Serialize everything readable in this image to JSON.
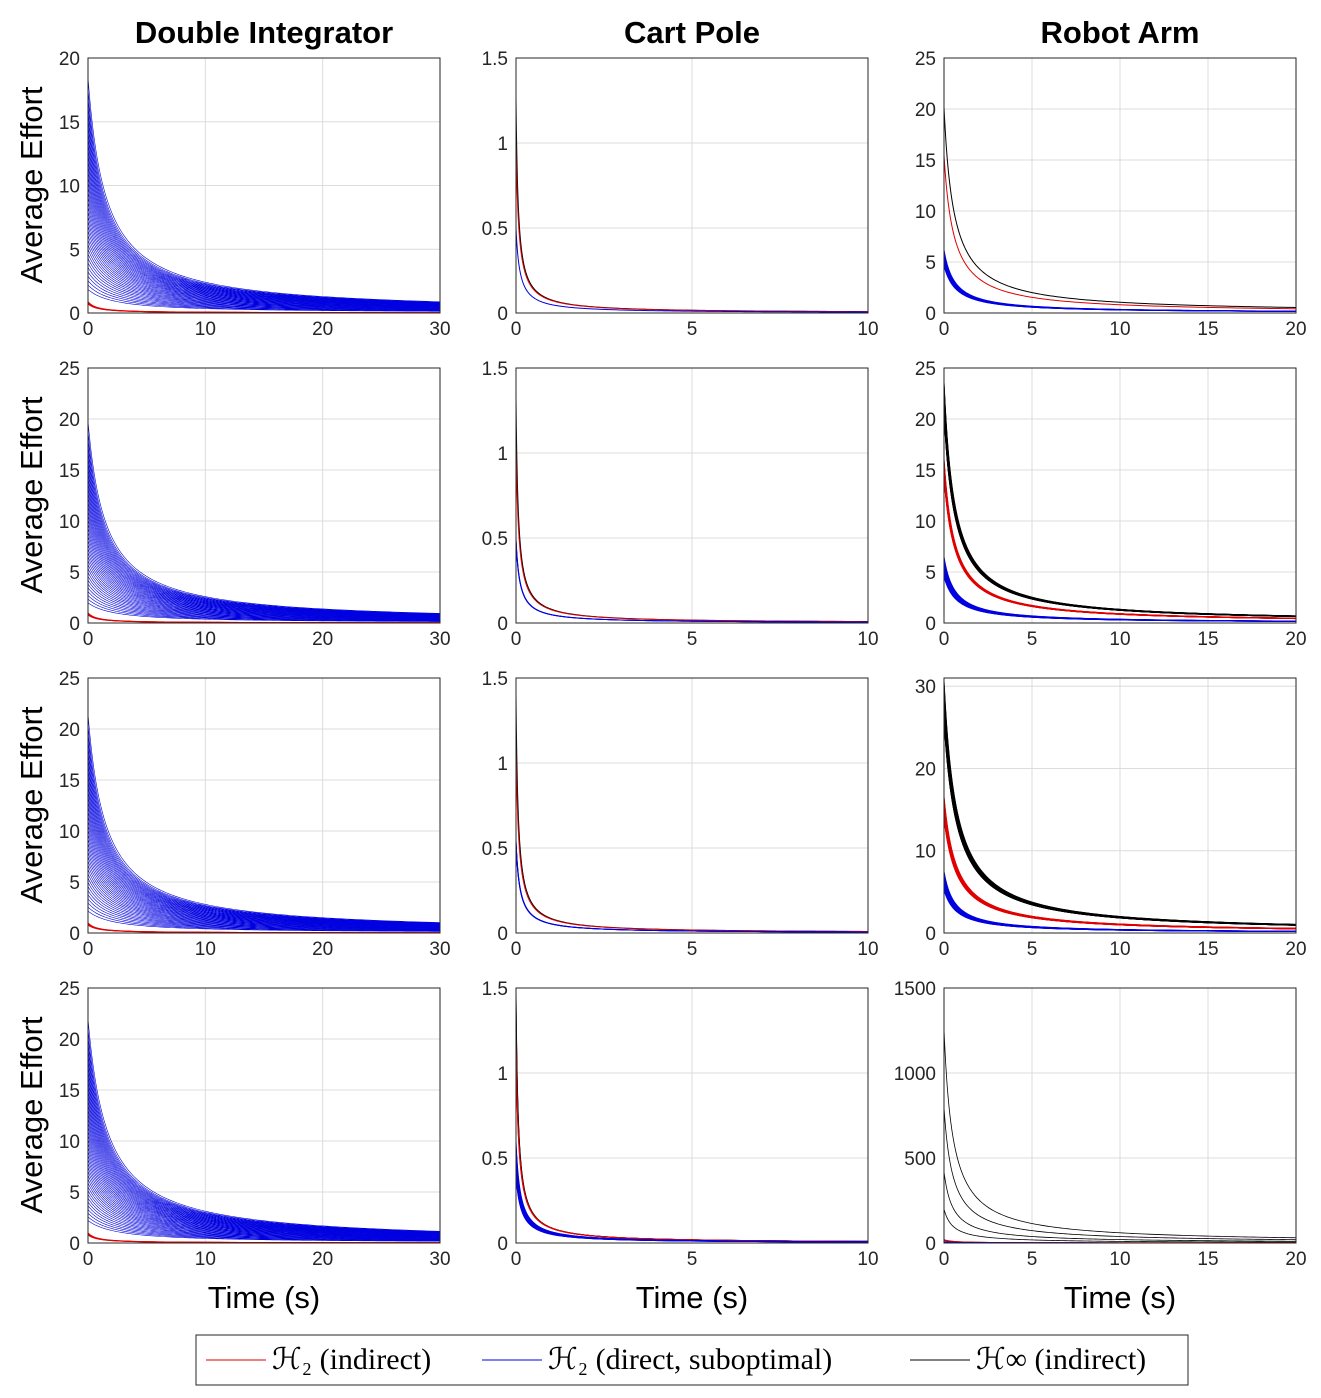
{
  "column_titles": [
    "Double Integrator",
    "Cart Pole",
    "Robot Arm"
  ],
  "ylabel": "Average Effort",
  "xlabel": "Time (s)",
  "legend": [
    {
      "label": "ℋ₂ (indirect)",
      "color": "#e00000"
    },
    {
      "label": "ℋ₂ (direct, suboptimal)",
      "color": "#0000e0"
    },
    {
      "label": "ℋ∞ (indirect)",
      "color": "#000000"
    }
  ],
  "colors": {
    "h2_indirect": "#e00000",
    "h2_direct": "#0000e0",
    "hinf_indirect": "#000000"
  },
  "chart_data": [
    {
      "type": "line",
      "row": 1,
      "col": 1,
      "xlim": [
        0,
        30
      ],
      "ylim": [
        0,
        20
      ],
      "xticks": [
        0,
        10,
        20,
        30
      ],
      "yticks": [
        0,
        5,
        10,
        15,
        20
      ],
      "xtick_labels": [
        "0",
        "10",
        "20",
        "30"
      ],
      "ytick_labels": [
        "0",
        "5",
        "10",
        "15",
        "20"
      ],
      "grid": true,
      "series": [
        {
          "name": "H2 direct",
          "color": "#0000e0",
          "peak": [
            18.5
          ],
          "spread": 0.9,
          "tau": 1.0,
          "count": 40,
          "width": 0.6
        },
        {
          "name": "H2 indirect",
          "color": "#e00000",
          "peak": [
            0.9
          ],
          "spread": 0.2,
          "tau": 0.5,
          "count": 4,
          "width": 1.0
        }
      ]
    },
    {
      "type": "line",
      "row": 1,
      "col": 2,
      "xlim": [
        0,
        10
      ],
      "ylim": [
        0,
        1.5
      ],
      "xticks": [
        0,
        5,
        10
      ],
      "yticks": [
        0,
        0.5,
        1,
        1.5
      ],
      "xtick_labels": [
        "0",
        "5",
        "10"
      ],
      "ytick_labels": [
        "0",
        "0.5",
        "1",
        "1.5"
      ],
      "grid": true,
      "series": [
        {
          "name": "H-inf indirect",
          "color": "#000000",
          "peak": [
            1.27
          ],
          "spread": 0,
          "tau": 0.13,
          "count": 1,
          "width": 1.0
        },
        {
          "name": "H2 indirect",
          "color": "#e00000",
          "peak": [
            1.0
          ],
          "spread": 0,
          "tau": 0.16,
          "count": 1,
          "width": 1.0
        },
        {
          "name": "H2 direct",
          "color": "#0000e0",
          "peak": [
            0.5
          ],
          "spread": 0,
          "tau": 0.22,
          "count": 1,
          "width": 1.0
        }
      ]
    },
    {
      "type": "line",
      "row": 1,
      "col": 3,
      "xlim": [
        0,
        20
      ],
      "ylim": [
        0,
        25
      ],
      "xticks": [
        0,
        5,
        10,
        15,
        20
      ],
      "yticks": [
        0,
        5,
        10,
        15,
        20,
        25
      ],
      "xtick_labels": [
        "0",
        "5",
        "10",
        "15",
        "20"
      ],
      "ytick_labels": [
        "0",
        "5",
        "10",
        "15",
        "20",
        "25"
      ],
      "grid": true,
      "series": [
        {
          "name": "H-inf indirect",
          "color": "#000000",
          "peak": [
            20.2
          ],
          "spread": 0,
          "tau": 0.55,
          "count": 1,
          "width": 1.0
        },
        {
          "name": "H2 indirect",
          "color": "#e00000",
          "peak": [
            15.5
          ],
          "spread": 0,
          "tau": 0.55,
          "count": 1,
          "width": 1.0
        },
        {
          "name": "H2 direct",
          "color": "#0000e0",
          "peak": [
            6.2
          ],
          "spread": 0.25,
          "tau": 0.6,
          "count": 12,
          "width": 1.0
        }
      ]
    },
    {
      "type": "line",
      "row": 2,
      "col": 1,
      "xlim": [
        0,
        30
      ],
      "ylim": [
        0,
        25
      ],
      "xticks": [
        0,
        10,
        20,
        30
      ],
      "yticks": [
        0,
        5,
        10,
        15,
        20,
        25
      ],
      "xtick_labels": [
        "0",
        "10",
        "20",
        "30"
      ],
      "ytick_labels": [
        "0",
        "5",
        "10",
        "15",
        "20",
        "25"
      ],
      "grid": true,
      "series": [
        {
          "name": "H2 direct",
          "color": "#0000e0",
          "peak": [
            19.8
          ],
          "spread": 0.9,
          "tau": 1.0,
          "count": 40,
          "width": 0.6
        },
        {
          "name": "H2 indirect",
          "color": "#e00000",
          "peak": [
            1.0
          ],
          "spread": 0.2,
          "tau": 0.5,
          "count": 4,
          "width": 1.0
        }
      ]
    },
    {
      "type": "line",
      "row": 2,
      "col": 2,
      "xlim": [
        0,
        10
      ],
      "ylim": [
        0,
        1.5
      ],
      "xticks": [
        0,
        5,
        10
      ],
      "yticks": [
        0,
        0.5,
        1,
        1.5
      ],
      "xtick_labels": [
        "0",
        "5",
        "10"
      ],
      "ytick_labels": [
        "0",
        "0.5",
        "1",
        "1.5"
      ],
      "grid": true,
      "series": [
        {
          "name": "H-inf indirect",
          "color": "#000000",
          "peak": [
            1.33
          ],
          "spread": 0,
          "tau": 0.13,
          "count": 1,
          "width": 1.0
        },
        {
          "name": "H2 indirect",
          "color": "#e00000",
          "peak": [
            1.05
          ],
          "spread": 0,
          "tau": 0.16,
          "count": 1,
          "width": 1.0
        },
        {
          "name": "H2 direct",
          "color": "#0000e0",
          "peak": [
            0.5
          ],
          "spread": 0.04,
          "tau": 0.22,
          "count": 3,
          "width": 1.0
        }
      ]
    },
    {
      "type": "line",
      "row": 2,
      "col": 3,
      "xlim": [
        0,
        20
      ],
      "ylim": [
        0,
        25
      ],
      "xticks": [
        0,
        5,
        10,
        15,
        20
      ],
      "yticks": [
        0,
        5,
        10,
        15,
        20,
        25
      ],
      "xtick_labels": [
        "0",
        "5",
        "10",
        "15",
        "20"
      ],
      "ytick_labels": [
        "0",
        "5",
        "10",
        "15",
        "20",
        "25"
      ],
      "grid": true,
      "series": [
        {
          "name": "H-inf indirect",
          "color": "#000000",
          "peak": [
            23.5
          ],
          "spread": 0.12,
          "tau": 0.6,
          "count": 25,
          "width": 1.2
        },
        {
          "name": "H2 indirect",
          "color": "#e00000",
          "peak": [
            16.0
          ],
          "spread": 0.1,
          "tau": 0.6,
          "count": 20,
          "width": 1.2
        },
        {
          "name": "H2 direct",
          "color": "#0000e0",
          "peak": [
            6.5
          ],
          "spread": 0.3,
          "tau": 0.6,
          "count": 20,
          "width": 1.0
        }
      ]
    },
    {
      "type": "line",
      "row": 3,
      "col": 1,
      "xlim": [
        0,
        30
      ],
      "ylim": [
        0,
        25
      ],
      "xticks": [
        0,
        10,
        20,
        30
      ],
      "yticks": [
        0,
        5,
        10,
        15,
        20,
        25
      ],
      "xtick_labels": [
        "0",
        "10",
        "20",
        "30"
      ],
      "ytick_labels": [
        "0",
        "5",
        "10",
        "15",
        "20",
        "25"
      ],
      "grid": true,
      "series": [
        {
          "name": "H2 direct",
          "color": "#0000e0",
          "peak": [
            21.5
          ],
          "spread": 0.9,
          "tau": 1.0,
          "count": 40,
          "width": 0.6
        },
        {
          "name": "H2 indirect",
          "color": "#e00000",
          "peak": [
            1.0
          ],
          "spread": 0.2,
          "tau": 0.5,
          "count": 4,
          "width": 1.0
        }
      ]
    },
    {
      "type": "line",
      "row": 3,
      "col": 2,
      "xlim": [
        0,
        10
      ],
      "ylim": [
        0,
        1.5
      ],
      "xticks": [
        0,
        5,
        10
      ],
      "yticks": [
        0,
        0.5,
        1,
        1.5
      ],
      "xtick_labels": [
        "0",
        "5",
        "10"
      ],
      "ytick_labels": [
        "0",
        "0.5",
        "1",
        "1.5"
      ],
      "grid": true,
      "series": [
        {
          "name": "H-inf indirect",
          "color": "#000000",
          "peak": [
            1.4
          ],
          "spread": 0,
          "tau": 0.13,
          "count": 1,
          "width": 1.0
        },
        {
          "name": "H2 indirect",
          "color": "#e00000",
          "peak": [
            1.1
          ],
          "spread": 0,
          "tau": 0.16,
          "count": 1,
          "width": 1.0
        },
        {
          "name": "H2 direct",
          "color": "#0000e0",
          "peak": [
            0.55
          ],
          "spread": 0.05,
          "tau": 0.22,
          "count": 4,
          "width": 1.0
        }
      ]
    },
    {
      "type": "line",
      "row": 3,
      "col": 3,
      "xlim": [
        0,
        20
      ],
      "ylim": [
        0,
        31
      ],
      "xticks": [
        0,
        5,
        10,
        15,
        20
      ],
      "yticks": [
        0,
        10,
        20,
        30
      ],
      "xtick_labels": [
        "0",
        "5",
        "10",
        "15",
        "20"
      ],
      "ytick_labels": [
        "0",
        "10",
        "20",
        "30"
      ],
      "grid": true,
      "series": [
        {
          "name": "H-inf indirect",
          "color": "#000000",
          "peak": [
            30.5
          ],
          "spread": 0.15,
          "tau": 0.7,
          "count": 30,
          "width": 1.2
        },
        {
          "name": "H2 indirect",
          "color": "#e00000",
          "peak": [
            16.5
          ],
          "spread": 0.15,
          "tau": 0.7,
          "count": 25,
          "width": 1.2
        },
        {
          "name": "H2 direct",
          "color": "#0000e0",
          "peak": [
            7.5
          ],
          "spread": 0.3,
          "tau": 0.6,
          "count": 25,
          "width": 1.0
        }
      ]
    },
    {
      "type": "line",
      "row": 4,
      "col": 1,
      "xlim": [
        0,
        30
      ],
      "ylim": [
        0,
        25
      ],
      "xticks": [
        0,
        10,
        20,
        30
      ],
      "yticks": [
        0,
        5,
        10,
        15,
        20,
        25
      ],
      "xtick_labels": [
        "0",
        "10",
        "20",
        "30"
      ],
      "ytick_labels": [
        "0",
        "5",
        "10",
        "15",
        "20",
        "25"
      ],
      "grid": true,
      "series": [
        {
          "name": "H2 direct",
          "color": "#0000e0",
          "peak": [
            22.0
          ],
          "spread": 0.9,
          "tau": 1.1,
          "count": 45,
          "width": 0.6
        },
        {
          "name": "H2 indirect",
          "color": "#e00000",
          "peak": [
            1.0
          ],
          "spread": 0.2,
          "tau": 0.5,
          "count": 4,
          "width": 1.0
        }
      ]
    },
    {
      "type": "line",
      "row": 4,
      "col": 2,
      "xlim": [
        0,
        10
      ],
      "ylim": [
        0,
        1.5
      ],
      "xticks": [
        0,
        5,
        10
      ],
      "yticks": [
        0,
        0.5,
        1,
        1.5
      ],
      "xtick_labels": [
        "0",
        "5",
        "10"
      ],
      "ytick_labels": [
        "0",
        "0.5",
        "1",
        "1.5"
      ],
      "grid": true,
      "series": [
        {
          "name": "H-inf indirect",
          "color": "#000000",
          "peak": [
            1.48
          ],
          "spread": 0.05,
          "tau": 0.13,
          "count": 3,
          "width": 1.0
        },
        {
          "name": "H2 indirect",
          "color": "#e00000",
          "peak": [
            1.2
          ],
          "spread": 0.05,
          "tau": 0.16,
          "count": 3,
          "width": 1.0
        },
        {
          "name": "H2 direct",
          "color": "#0000e0",
          "peak": [
            0.6
          ],
          "spread": 0.35,
          "tau": 0.25,
          "count": 15,
          "width": 1.0
        }
      ]
    },
    {
      "type": "line",
      "row": 4,
      "col": 3,
      "xlim": [
        0,
        20
      ],
      "ylim": [
        0,
        1500
      ],
      "xticks": [
        0,
        5,
        10,
        15,
        20
      ],
      "yticks": [
        0,
        500,
        1000,
        1500
      ],
      "xtick_labels": [
        "0",
        "5",
        "10",
        "15",
        "20"
      ],
      "ytick_labels": [
        "0",
        "500",
        "1000",
        "1500"
      ],
      "grid": true,
      "series": [
        {
          "name": "H-inf indirect",
          "color": "#000000",
          "peak": [
            1260,
            800,
            420,
            200
          ],
          "spread": 0,
          "tau": 0.5,
          "count": 4,
          "width": 0.8
        },
        {
          "name": "H2 indirect",
          "color": "#e00000",
          "peak": [
            20
          ],
          "spread": 0.2,
          "tau": 0.5,
          "count": 3,
          "width": 1.0
        },
        {
          "name": "H2 direct",
          "color": "#0000e0",
          "peak": [
            8
          ],
          "spread": 0.3,
          "tau": 0.5,
          "count": 3,
          "width": 1.0
        }
      ]
    }
  ]
}
